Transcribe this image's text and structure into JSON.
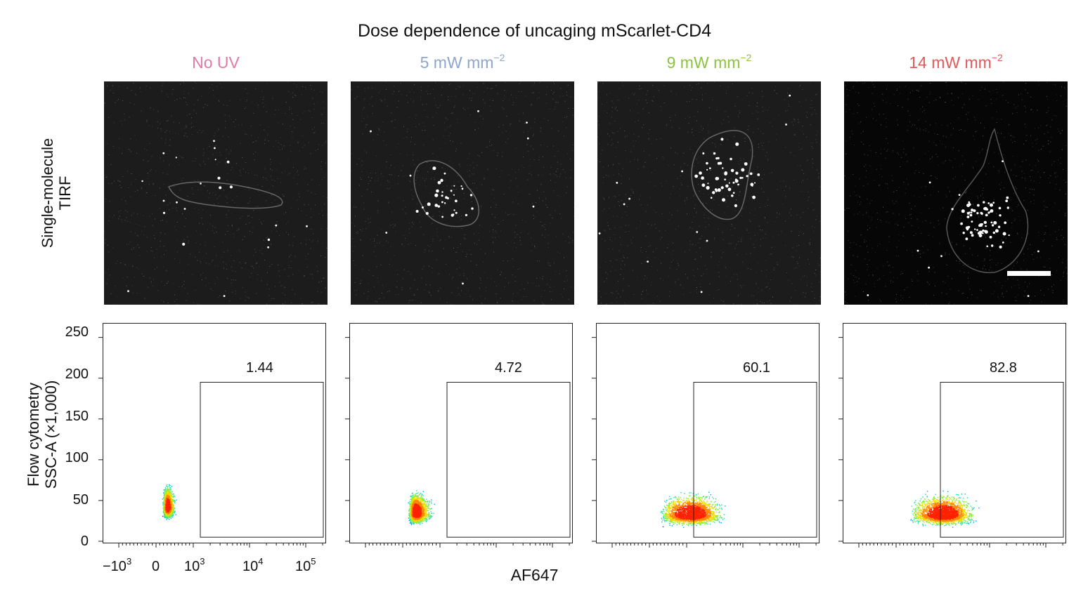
{
  "figure": {
    "title": "Dose dependence of uncaging mScarlet-CD4",
    "row_label_top_line1": "Single-molecule",
    "row_label_top_line2": "TIRF",
    "row_label_bottom_line1": "Flow cytometry",
    "row_label_bottom_line2": "SSC-A (×1,000)",
    "x_axis_label": "AF647",
    "columns": [
      {
        "label": "No UV",
        "unit_sup": "",
        "color": "#e07aa8"
      },
      {
        "label": "5 mW mm",
        "unit_sup": "−2",
        "color": "#8ea6cc"
      },
      {
        "label": "9 mW mm",
        "unit_sup": "−2",
        "color": "#8cc43f"
      },
      {
        "label": "14 mW mm",
        "unit_sup": "−2",
        "color": "#e35a5a"
      }
    ]
  },
  "chart_data": [
    {
      "type": "scatter",
      "panel": "No UV",
      "gate_percent": "1.44",
      "ylim": [
        0,
        260
      ],
      "yticks": [
        "0",
        "50",
        "100",
        "150",
        "200",
        "250"
      ],
      "xticks": [
        {
          "base": "−10",
          "exp": "3"
        },
        {
          "base": "0",
          "exp": ""
        },
        {
          "base": "10",
          "exp": "3"
        },
        {
          "base": "10",
          "exp": "4"
        },
        {
          "base": "10",
          "exp": "5"
        }
      ],
      "gate": {
        "x_min": 1000,
        "y_max": 195
      },
      "population": {
        "center_x": 300,
        "center_y": 42,
        "spread": "narrow"
      }
    },
    {
      "type": "scatter",
      "panel": "5 mW mm−2",
      "gate_percent": "4.72",
      "ylim": [
        0,
        260
      ],
      "gate": {
        "x_min": 1000,
        "y_max": 195
      },
      "population": {
        "center_x": 350,
        "center_y": 35,
        "spread": "medium"
      }
    },
    {
      "type": "scatter",
      "panel": "9 mW mm−2",
      "gate_percent": "60.1",
      "ylim": [
        0,
        260
      ],
      "gate": {
        "x_min": 1000,
        "y_max": 195
      },
      "population": {
        "center_x": 1200,
        "center_y": 33,
        "spread": "wide"
      }
    },
    {
      "type": "scatter",
      "panel": "14 mW mm−2",
      "gate_percent": "82.8",
      "ylim": [
        0,
        260
      ],
      "gate": {
        "x_min": 1000,
        "y_max": 195
      },
      "population": {
        "center_x": 1500,
        "center_y": 33,
        "spread": "wide"
      }
    }
  ]
}
